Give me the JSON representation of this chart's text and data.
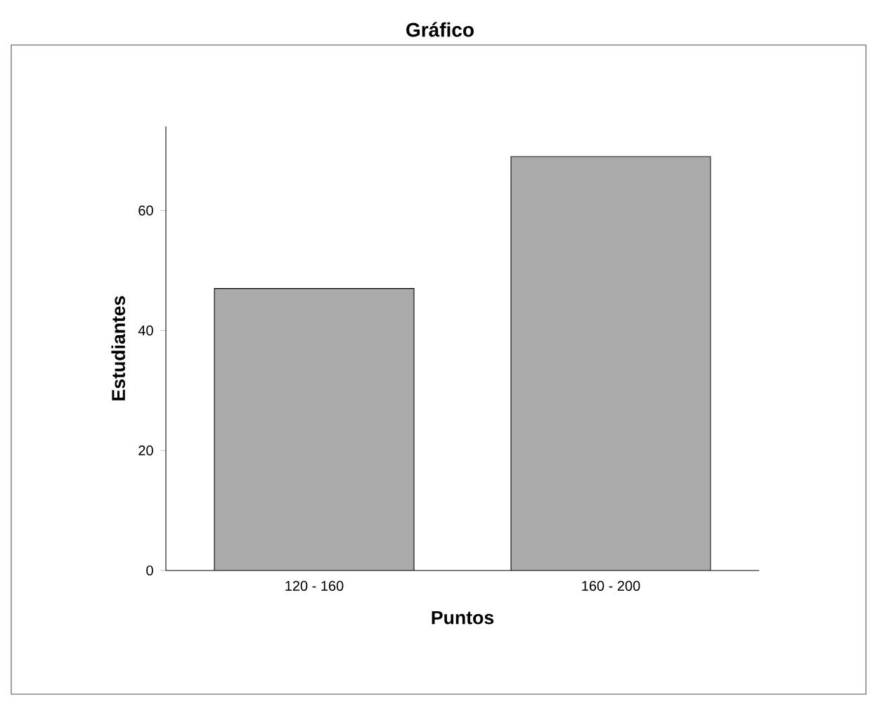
{
  "chart_data": {
    "type": "bar",
    "title": "Gráfico",
    "xlabel": "Puntos",
    "ylabel": "Estudiantes",
    "categories": [
      "120 - 160",
      "160 - 200"
    ],
    "values": [
      47,
      69
    ],
    "color": "#aaaaaa",
    "ylim": [
      0,
      74
    ],
    "yticks": [
      0,
      20,
      40,
      60
    ]
  }
}
